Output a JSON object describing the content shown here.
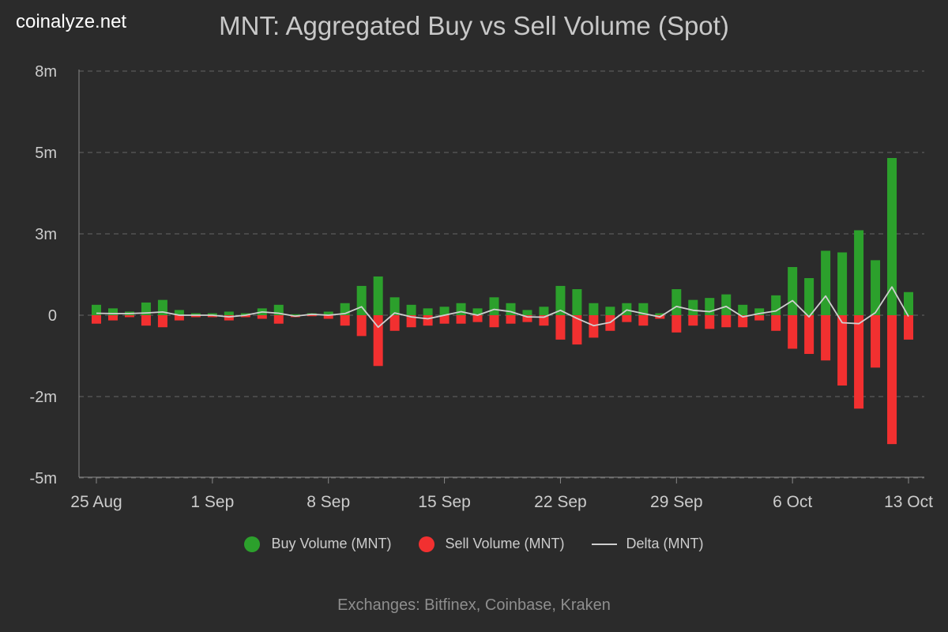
{
  "brand": "coinalyze.net",
  "colors": {
    "buy": "#2ca02c",
    "sell": "#f23030",
    "delta": "#cfcfcf",
    "grid": "#666666",
    "axis": "#888888",
    "text": "#cccccc"
  },
  "legend": {
    "buy": "Buy Volume (MNT)",
    "sell": "Sell Volume (MNT)",
    "delta": "Delta (MNT)"
  },
  "footer": "Exchanges: Bitfinex, Coinbase, Kraken",
  "chart_data": {
    "type": "bar",
    "title": "MNT: Aggregated Buy vs Sell Volume (Spot)",
    "xlabel": "",
    "ylabel": "",
    "ylim": [
      -5000000,
      8000000
    ],
    "y_ticks": [
      {
        "value": 7500000,
        "label": "8m"
      },
      {
        "value": 5000000,
        "label": "5m"
      },
      {
        "value": 2500000,
        "label": "3m"
      },
      {
        "value": 0,
        "label": "0"
      },
      {
        "value": -2500000,
        "label": "-2m"
      },
      {
        "value": -5000000,
        "label": "-5m"
      }
    ],
    "x_ticks": [
      {
        "index": 0,
        "label": "25 Aug"
      },
      {
        "index": 7,
        "label": "1 Sep"
      },
      {
        "index": 14,
        "label": "8 Sep"
      },
      {
        "index": 21,
        "label": "15 Sep"
      },
      {
        "index": 28,
        "label": "22 Sep"
      },
      {
        "index": 35,
        "label": "29 Sep"
      },
      {
        "index": 42,
        "label": "6 Oct"
      },
      {
        "index": 49,
        "label": "13 Oct"
      }
    ],
    "categories": [
      "25 Aug",
      "26 Aug",
      "27 Aug",
      "28 Aug",
      "29 Aug",
      "30 Aug",
      "31 Aug",
      "1 Sep",
      "2 Sep",
      "3 Sep",
      "4 Sep",
      "5 Sep",
      "6 Sep",
      "7 Sep",
      "8 Sep",
      "9 Sep",
      "10 Sep",
      "11 Sep",
      "12 Sep",
      "13 Sep",
      "14 Sep",
      "15 Sep",
      "16 Sep",
      "17 Sep",
      "18 Sep",
      "19 Sep",
      "20 Sep",
      "21 Sep",
      "22 Sep",
      "23 Sep",
      "24 Sep",
      "25 Sep",
      "26 Sep",
      "27 Sep",
      "28 Sep",
      "29 Sep",
      "30 Sep",
      "1 Oct",
      "2 Oct",
      "3 Oct",
      "4 Oct",
      "5 Oct",
      "6 Oct",
      "7 Oct",
      "8 Oct",
      "9 Oct",
      "10 Oct",
      "11 Oct",
      "12 Oct",
      "13 Oct"
    ],
    "series": [
      {
        "name": "Buy Volume (MNT)",
        "values": [
          320000,
          210000,
          110000,
          390000,
          470000,
          160000,
          60000,
          60000,
          110000,
          60000,
          210000,
          320000,
          30000,
          60000,
          110000,
          370000,
          900000,
          1190000,
          550000,
          320000,
          210000,
          260000,
          370000,
          210000,
          550000,
          370000,
          160000,
          260000,
          900000,
          800000,
          370000,
          260000,
          370000,
          370000,
          60000,
          800000,
          470000,
          530000,
          640000,
          320000,
          210000,
          610000,
          1480000,
          1140000,
          1980000,
          1930000,
          2610000,
          1690000,
          4830000,
          710000
        ]
      },
      {
        "name": "Sell Volume (MNT)",
        "values": [
          -260000,
          -160000,
          -60000,
          -320000,
          -370000,
          -160000,
          -60000,
          -60000,
          -160000,
          -60000,
          -110000,
          -260000,
          -60000,
          -30000,
          -110000,
          -320000,
          -640000,
          -1560000,
          -480000,
          -370000,
          -320000,
          -260000,
          -260000,
          -210000,
          -370000,
          -260000,
          -210000,
          -320000,
          -750000,
          -900000,
          -690000,
          -480000,
          -210000,
          -320000,
          -110000,
          -530000,
          -320000,
          -420000,
          -370000,
          -370000,
          -160000,
          -480000,
          -1030000,
          -1190000,
          -1390000,
          -2160000,
          -2870000,
          -1610000,
          -3960000,
          -750000
        ]
      },
      {
        "name": "Delta (MNT)",
        "values": [
          60000,
          50000,
          50000,
          70000,
          100000,
          0,
          0,
          0,
          -50000,
          0,
          100000,
          60000,
          -30000,
          30000,
          0,
          50000,
          260000,
          -370000,
          70000,
          -50000,
          -110000,
          0,
          110000,
          0,
          180000,
          110000,
          -50000,
          -60000,
          150000,
          -100000,
          -320000,
          -220000,
          160000,
          50000,
          -50000,
          270000,
          150000,
          110000,
          270000,
          -50000,
          50000,
          130000,
          450000,
          -50000,
          590000,
          -230000,
          -260000,
          80000,
          870000,
          -40000
        ]
      }
    ]
  }
}
